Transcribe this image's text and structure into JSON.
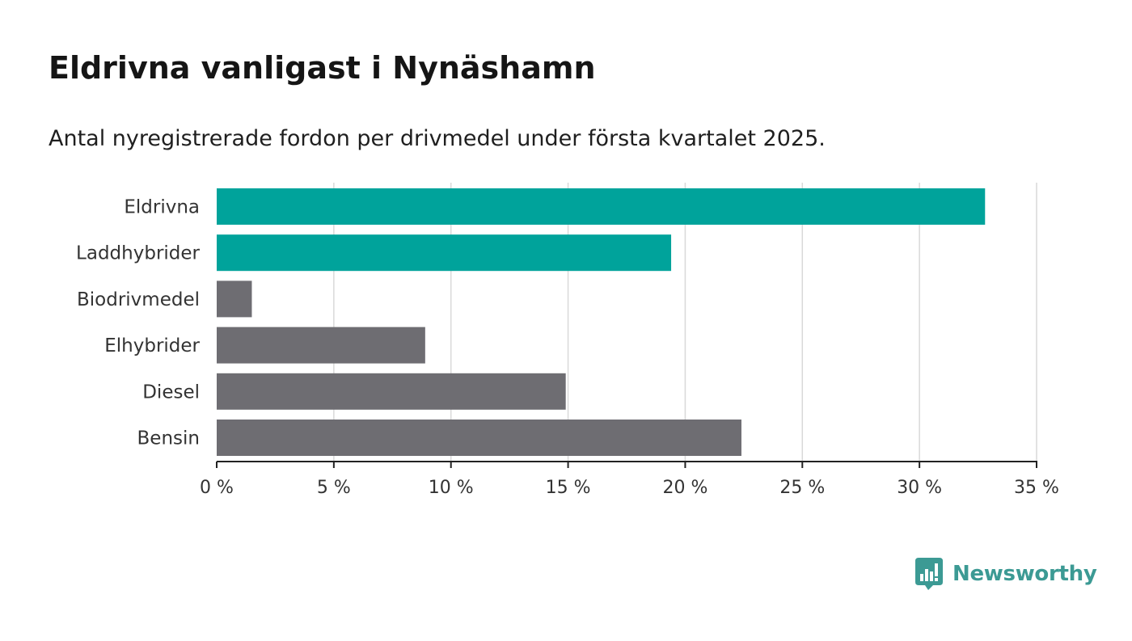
{
  "header": {
    "title": "Eldrivna vanligast i Nynäshamn",
    "subtitle": "Antal nyregistrerade fordon per drivmedel under första kvartalet 2025."
  },
  "colors": {
    "highlight": "#00a39b",
    "default": "#6e6d72",
    "grid": "#d9d9d9",
    "axis": "#222222",
    "brand": "#3c9a94"
  },
  "chart_data": {
    "type": "bar",
    "orientation": "horizontal",
    "title": "Eldrivna vanligast i Nynäshamn",
    "subtitle": "Antal nyregistrerade fordon per drivmedel under första kvartalet 2025.",
    "xlabel": "",
    "ylabel": "",
    "unit": "%",
    "xlim": [
      0,
      35
    ],
    "grid": true,
    "legend": "none",
    "ticks": [
      "0 %",
      "5 %",
      "10 %",
      "15 %",
      "20 %",
      "25 %",
      "30 %",
      "35 %"
    ],
    "tick_values": [
      0,
      5,
      10,
      15,
      20,
      25,
      30,
      35
    ],
    "categories": [
      "Eldrivna",
      "Laddhybrider",
      "Biodrivmedel",
      "Elhybrider",
      "Diesel",
      "Bensin"
    ],
    "values": [
      32.8,
      19.4,
      1.5,
      8.9,
      14.9,
      22.4
    ],
    "highlighted": [
      true,
      true,
      false,
      false,
      false,
      false
    ]
  },
  "brand": {
    "name": "Newsworthy",
    "icon": "newsworthy-logo-icon"
  }
}
